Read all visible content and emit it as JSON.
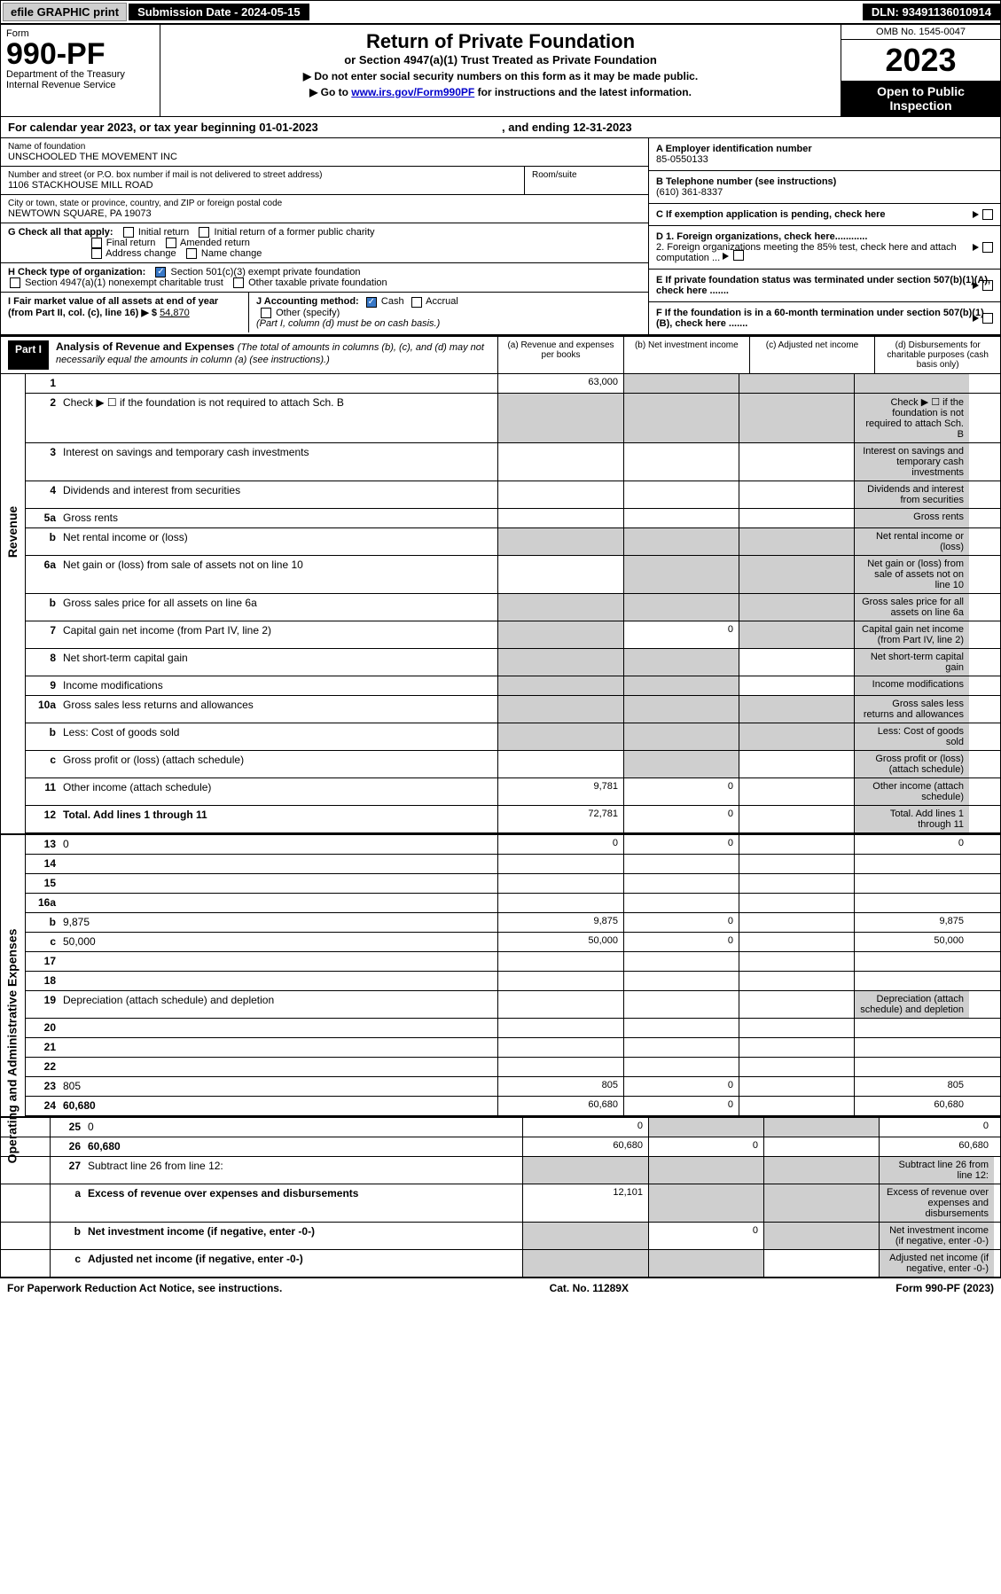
{
  "top": {
    "efile": "efile GRAPHIC print",
    "sub_label": "Submission Date - 2024-05-15",
    "dln": "DLN: 93491136010914"
  },
  "header": {
    "form_label": "Form",
    "form_num": "990-PF",
    "dept": "Department of the Treasury",
    "irs": "Internal Revenue Service",
    "title": "Return of Private Foundation",
    "subtitle": "or Section 4947(a)(1) Trust Treated as Private Foundation",
    "instr1": "▶ Do not enter social security numbers on this form as it may be made public.",
    "instr2": "▶ Go to ",
    "instr2_link": "www.irs.gov/Form990PF",
    "instr2_tail": " for instructions and the latest information.",
    "omb": "OMB No. 1545-0047",
    "year": "2023",
    "otp1": "Open to Public",
    "otp2": "Inspection"
  },
  "cal": {
    "text_a": "For calendar year 2023, or tax year beginning ",
    "begin": "01-01-2023",
    "text_b": ", and ending ",
    "end": "12-31-2023"
  },
  "foundation": {
    "name_label": "Name of foundation",
    "name": "UNSCHOOLED THE MOVEMENT INC",
    "addr_label": "Number and street (or P.O. box number if mail is not delivered to street address)",
    "addr": "1106 STACKHOUSE MILL ROAD",
    "room_label": "Room/suite",
    "city_label": "City or town, state or province, country, and ZIP or foreign postal code",
    "city": "NEWTOWN SQUARE, PA  19073"
  },
  "rightinfo": {
    "a_label": "A Employer identification number",
    "ein": "85-0550133",
    "b_label": "B Telephone number (see instructions)",
    "phone": "(610) 361-8337",
    "c_label": "C If exemption application is pending, check here",
    "d1": "D 1. Foreign organizations, check here............",
    "d2": "2. Foreign organizations meeting the 85% test, check here and attach computation ...",
    "e": "E  If private foundation status was terminated under section 507(b)(1)(A), check here .......",
    "f": "F  If the foundation is in a 60-month termination under section 507(b)(1)(B), check here .......",
    "g_label": "G Check all that apply:",
    "g_opts": [
      "Initial return",
      "Initial return of a former public charity",
      "Final return",
      "Amended return",
      "Address change",
      "Name change"
    ],
    "h_label": "H Check type of organization:",
    "h_opts": [
      "Section 501(c)(3) exempt private foundation",
      "Section 4947(a)(1) nonexempt charitable trust",
      "Other taxable private foundation"
    ],
    "i_label": "I Fair market value of all assets at end of year (from Part II, col. (c), line 16) ▶ $",
    "i_val": "54,870",
    "j_label": "J Accounting method:",
    "j_cash": "Cash",
    "j_accrual": "Accrual",
    "j_other": "Other (specify)",
    "j_note": "(Part I, column (d) must be on cash basis.)"
  },
  "part1": {
    "label": "Part I",
    "title": "Analysis of Revenue and Expenses",
    "title_note": "(The total of amounts in columns (b), (c), and (d) may not necessarily equal the amounts in column (a) (see instructions).)",
    "col_a": "(a) Revenue and expenses per books",
    "col_b": "(b) Net investment income",
    "col_c": "(c) Adjusted net income",
    "col_d": "(d) Disbursements for charitable purposes (cash basis only)"
  },
  "side": {
    "revenue": "Revenue",
    "expenses": "Operating and Administrative Expenses"
  },
  "lines": [
    {
      "n": "1",
      "d": "",
      "a": "63,000",
      "b": "",
      "c": "",
      "shade_b": true,
      "shade_c": true,
      "shade_d": true
    },
    {
      "n": "2",
      "d": "Check ▶ ☐ if the foundation is not required to attach Sch. B",
      "a": "",
      "shade_a": true,
      "shade_b": true,
      "shade_c": true,
      "shade_d": true
    },
    {
      "n": "3",
      "d": "Interest on savings and temporary cash investments",
      "a": "",
      "b": "",
      "c": "",
      "shade_d": true
    },
    {
      "n": "4",
      "d": "Dividends and interest from securities",
      "a": "",
      "b": "",
      "c": "",
      "shade_d": true
    },
    {
      "n": "5a",
      "d": "Gross rents",
      "a": "",
      "b": "",
      "c": "",
      "shade_d": true
    },
    {
      "n": "b",
      "d": "Net rental income or (loss)",
      "shade_a": true,
      "shade_b": true,
      "shade_c": true,
      "shade_d": true
    },
    {
      "n": "6a",
      "d": "Net gain or (loss) from sale of assets not on line 10",
      "a": "",
      "shade_b": true,
      "shade_c": true,
      "shade_d": true
    },
    {
      "n": "b",
      "d": "Gross sales price for all assets on line 6a",
      "shade_a": true,
      "shade_b": true,
      "shade_c": true,
      "shade_d": true
    },
    {
      "n": "7",
      "d": "Capital gain net income (from Part IV, line 2)",
      "shade_a": true,
      "b": "0",
      "shade_c": true,
      "shade_d": true
    },
    {
      "n": "8",
      "d": "Net short-term capital gain",
      "shade_a": true,
      "shade_b": true,
      "c": "",
      "shade_d": true
    },
    {
      "n": "9",
      "d": "Income modifications",
      "shade_a": true,
      "shade_b": true,
      "c": "",
      "shade_d": true
    },
    {
      "n": "10a",
      "d": "Gross sales less returns and allowances",
      "shade_a": true,
      "shade_b": true,
      "shade_c": true,
      "shade_d": true
    },
    {
      "n": "b",
      "d": "Less: Cost of goods sold",
      "shade_a": true,
      "shade_b": true,
      "shade_c": true,
      "shade_d": true
    },
    {
      "n": "c",
      "d": "Gross profit or (loss) (attach schedule)",
      "a": "",
      "shade_b": true,
      "c": "",
      "shade_d": true
    },
    {
      "n": "11",
      "d": "Other income (attach schedule)",
      "a": "9,781",
      "b": "0",
      "c": "",
      "shade_d": true
    },
    {
      "n": "12",
      "d": "Total. Add lines 1 through 11",
      "bold": true,
      "a": "72,781",
      "b": "0",
      "c": "",
      "shade_d": true
    },
    {
      "n": "13",
      "d": "0",
      "a": "0",
      "b": "0",
      "c": ""
    },
    {
      "n": "14",
      "d": "",
      "a": "",
      "b": "",
      "c": ""
    },
    {
      "n": "15",
      "d": "",
      "a": "",
      "b": "",
      "c": ""
    },
    {
      "n": "16a",
      "d": "",
      "a": "",
      "b": "",
      "c": ""
    },
    {
      "n": "b",
      "d": "9,875",
      "a": "9,875",
      "b": "0",
      "c": ""
    },
    {
      "n": "c",
      "d": "50,000",
      "a": "50,000",
      "b": "0",
      "c": ""
    },
    {
      "n": "17",
      "d": "",
      "a": "",
      "b": "",
      "c": ""
    },
    {
      "n": "18",
      "d": "",
      "a": "",
      "b": "",
      "c": ""
    },
    {
      "n": "19",
      "d": "Depreciation (attach schedule) and depletion",
      "a": "",
      "b": "",
      "c": "",
      "shade_d": true
    },
    {
      "n": "20",
      "d": "",
      "a": "",
      "b": "",
      "c": ""
    },
    {
      "n": "21",
      "d": "",
      "a": "",
      "b": "",
      "c": ""
    },
    {
      "n": "22",
      "d": "",
      "a": "",
      "b": "",
      "c": ""
    },
    {
      "n": "23",
      "d": "805",
      "a": "805",
      "b": "0",
      "c": ""
    },
    {
      "n": "24",
      "d": "60,680",
      "bold": true,
      "a": "60,680",
      "b": "0",
      "c": ""
    },
    {
      "n": "25",
      "d": "0",
      "a": "0",
      "shade_b": true,
      "shade_c": true
    },
    {
      "n": "26",
      "d": "60,680",
      "bold": true,
      "a": "60,680",
      "b": "0",
      "c": ""
    },
    {
      "n": "27",
      "d": "Subtract line 26 from line 12:",
      "shade_a": true,
      "shade_b": true,
      "shade_c": true,
      "shade_d": true
    },
    {
      "n": "a",
      "d": "Excess of revenue over expenses and disbursements",
      "bold": true,
      "a": "12,101",
      "shade_b": true,
      "shade_c": true,
      "shade_d": true
    },
    {
      "n": "b",
      "d": "Net investment income (if negative, enter -0-)",
      "bold": true,
      "shade_a": true,
      "b": "0",
      "shade_c": true,
      "shade_d": true
    },
    {
      "n": "c",
      "d": "Adjusted net income (if negative, enter -0-)",
      "bold": true,
      "shade_a": true,
      "shade_b": true,
      "c": "",
      "shade_d": true
    }
  ],
  "footer": {
    "left": "For Paperwork Reduction Act Notice, see instructions.",
    "mid": "Cat. No. 11289X",
    "right": "Form 990-PF (2023)"
  }
}
